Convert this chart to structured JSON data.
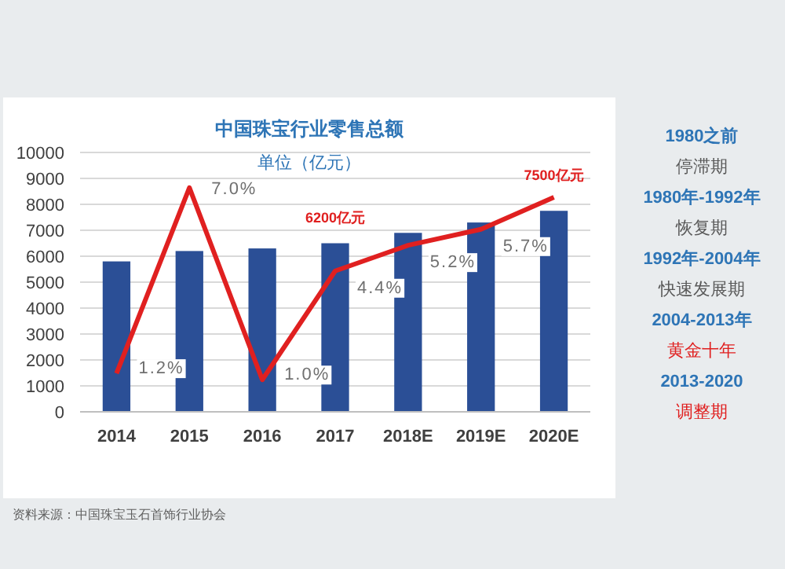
{
  "chart_data": {
    "type": "bar",
    "title": "中国珠宝行业零售总额",
    "subtitle": "单位（亿元）",
    "categories": [
      "2014",
      "2015",
      "2016",
      "2017",
      "2018E",
      "2019E",
      "2020E"
    ],
    "series": [
      {
        "color": "#2b4f96",
        "values": [
          5800,
          6200,
          6300,
          6500,
          6900,
          7300,
          7750
        ]
      },
      {
        "type": "line",
        "axis": "y2",
        "color": "#e02020",
        "values": [
          1.2,
          7.0,
          1.0,
          4.4,
          5.2,
          5.7,
          6.7
        ],
        "value_labels": [
          "1.2%",
          "7.0%",
          "1.0%",
          "4.4%",
          "5.2%",
          "5.7%",
          null
        ]
      }
    ],
    "ylim": [
      0,
      10000
    ],
    "yticks": [
      0,
      1000,
      2000,
      3000,
      4000,
      5000,
      6000,
      7000,
      8000,
      9000,
      10000
    ],
    "y2lim": [
      0,
      8.1
    ],
    "grid": "y",
    "marker": "none",
    "tick_labels": [
      "x",
      "y"
    ],
    "annotations": [
      {
        "text": "6200亿元",
        "x": "2017",
        "y": 6200
      },
      {
        "text": "7500亿元",
        "x": "2020E",
        "y": 7500
      },
      "资料来源：中国珠宝玉石首饰行业协会",
      "1980之前",
      "停滞期",
      "1980年-1992年",
      "恢复期",
      "1992年-2004年",
      "快速发展期",
      "2004-2013年",
      "黄金十年",
      "2013-2020",
      "调整期"
    ]
  }
}
